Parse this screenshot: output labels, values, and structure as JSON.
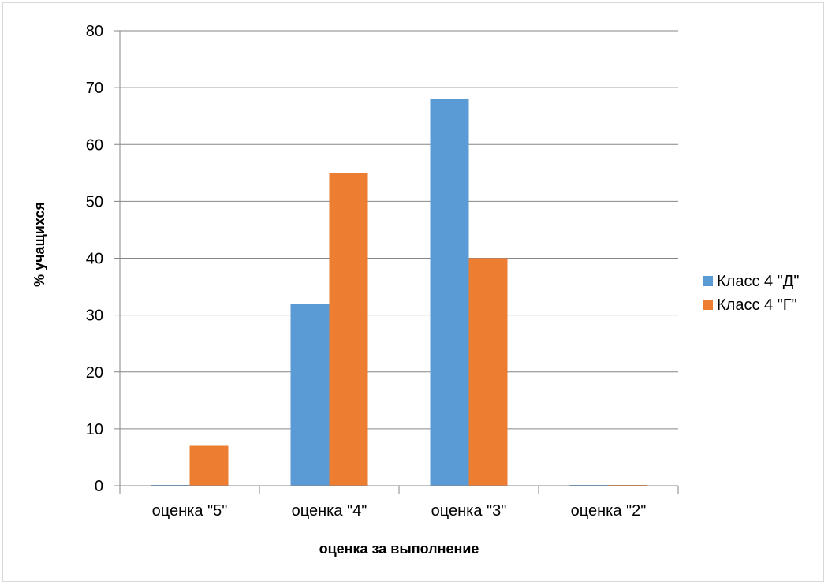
{
  "chart_data": {
    "type": "bar",
    "categories": [
      "оценка \"5\"",
      "оценка \"4\"",
      "оценка \"3\"",
      "оценка \"2\""
    ],
    "series": [
      {
        "name": "Класс 4 \"Д\"",
        "color": "#5b9bd5",
        "values": [
          0,
          32,
          68,
          0
        ]
      },
      {
        "name": "Класс 4 \"Г\"",
        "color": "#ed7d31",
        "values": [
          7,
          55,
          40,
          0
        ]
      }
    ],
    "title": "",
    "xlabel": "оценка за выполнение",
    "ylabel": "% учащихся",
    "ylim": [
      0,
      80
    ],
    "yticks": [
      0,
      10,
      20,
      30,
      40,
      50,
      60,
      70,
      80
    ],
    "grid": true,
    "legend_position": "right"
  }
}
